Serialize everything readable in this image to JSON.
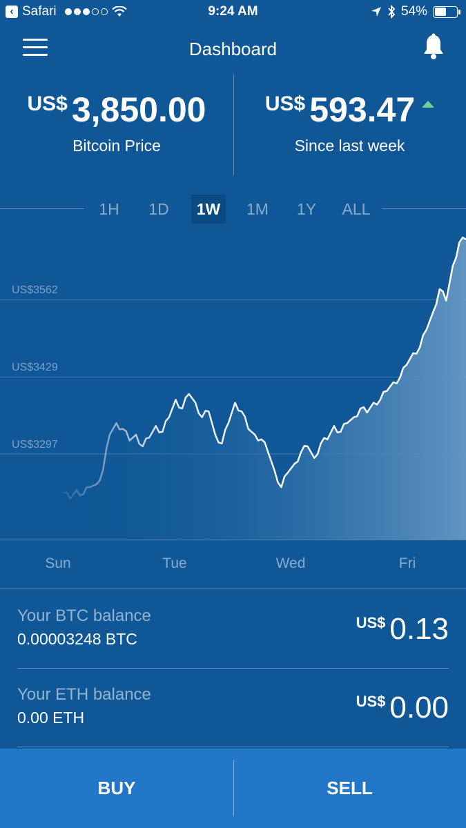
{
  "status_bar": {
    "back_app": "Safari",
    "time": "9:24 AM",
    "battery": "54%",
    "battery_level": 0.54,
    "icons": [
      "signal-dots-icon",
      "wifi-icon",
      "location-icon",
      "bluetooth-icon",
      "battery-icon"
    ]
  },
  "nav": {
    "title": "Dashboard",
    "menu_icon": "menu-icon",
    "notification_icon": "bell-icon"
  },
  "header": {
    "price": {
      "currency": "US$",
      "value": "3,850.00",
      "label": "Bitcoin Price"
    },
    "change": {
      "currency": "US$",
      "value": "593.47",
      "label": "Since last week",
      "trend": "up"
    }
  },
  "ranges": {
    "options": [
      "1H",
      "1D",
      "1W",
      "1M",
      "1Y",
      "ALL"
    ],
    "selected": "1W"
  },
  "chart_data": {
    "type": "area",
    "x_labels": [
      "Sun",
      "Tue",
      "Wed",
      "Fri"
    ],
    "y_ticks": [
      "US$3562",
      "US$3429",
      "US$3297"
    ],
    "y_tick_values": [
      3562,
      3429,
      3297
    ],
    "ylim": [
      3150,
      3690
    ],
    "grid": true,
    "series": [
      {
        "values": [
          3230,
          3220,
          3235,
          3228,
          3240,
          3245,
          3270,
          3330,
          3350,
          3340,
          3320,
          3330,
          3310,
          3325,
          3345,
          3335,
          3360,
          3390,
          3375,
          3400,
          3385,
          3360,
          3370,
          3330,
          3315,
          3350,
          3385,
          3370,
          3340,
          3330,
          3322,
          3300,
          3268,
          3240,
          3265,
          3280,
          3300,
          3310,
          3290,
          3315,
          3322,
          3345,
          3335,
          3350,
          3360,
          3375,
          3368,
          3385,
          3390,
          3405,
          3420,
          3428,
          3450,
          3470,
          3480,
          3510,
          3540,
          3580,
          3560,
          3620,
          3660,
          3665
        ]
      }
    ],
    "line_color": "#ffffff",
    "fill_color": "#5b8fbd"
  },
  "balances": [
    {
      "title": "Your BTC balance",
      "amount": "0.00003248 BTC",
      "currency": "US$",
      "value": "0.13"
    },
    {
      "title": "Your ETH balance",
      "amount": "0.00 ETH",
      "currency": "US$",
      "value": "0.00"
    }
  ],
  "actions": {
    "buy": "BUY",
    "sell": "SELL"
  },
  "colors": {
    "background": "#0f5796",
    "button_bar": "#2277c8",
    "trend_up": "#6fcf97"
  }
}
